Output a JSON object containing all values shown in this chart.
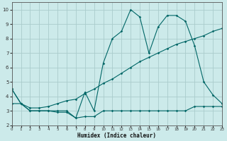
{
  "xlabel": "Humidex (Indice chaleur)",
  "bg_color": "#cceaea",
  "grid_color": "#aacccc",
  "line_color": "#006666",
  "xlim": [
    0,
    23
  ],
  "ylim": [
    2,
    10.5
  ],
  "yticks": [
    2,
    3,
    4,
    5,
    6,
    7,
    8,
    9,
    10
  ],
  "xticks": [
    0,
    1,
    2,
    3,
    4,
    5,
    6,
    7,
    8,
    9,
    10,
    11,
    12,
    13,
    14,
    15,
    16,
    17,
    18,
    19,
    20,
    21,
    22,
    23
  ],
  "line1_x": [
    0,
    1,
    2,
    3,
    4,
    5,
    6,
    7,
    8,
    9,
    10,
    11,
    12,
    13,
    14,
    15,
    16,
    17,
    18,
    19,
    20,
    21,
    22,
    23
  ],
  "line1_y": [
    4.5,
    3.5,
    3.0,
    3.0,
    3.0,
    3.0,
    3.0,
    2.5,
    2.6,
    2.6,
    3.0,
    3.0,
    3.0,
    3.0,
    3.0,
    3.0,
    3.0,
    3.0,
    3.0,
    3.0,
    3.3,
    3.3,
    3.3,
    3.3
  ],
  "line2_x": [
    0,
    1,
    2,
    3,
    4,
    5,
    6,
    7,
    8,
    9,
    10,
    11,
    12,
    13,
    14,
    15,
    16,
    17,
    18,
    19,
    20,
    21,
    22,
    23
  ],
  "line2_y": [
    3.5,
    3.5,
    3.2,
    3.2,
    3.3,
    3.5,
    3.7,
    3.8,
    4.2,
    4.5,
    4.9,
    5.2,
    5.6,
    6.0,
    6.4,
    6.7,
    7.0,
    7.3,
    7.6,
    7.8,
    8.0,
    8.2,
    8.5,
    8.7
  ],
  "line3_x": [
    0,
    1,
    2,
    3,
    4,
    5,
    6,
    7,
    8,
    9,
    10,
    11,
    12,
    13,
    14,
    15,
    16,
    17,
    18,
    19,
    20,
    21,
    22,
    23
  ],
  "line3_y": [
    4.5,
    3.5,
    3.0,
    3.0,
    3.0,
    2.9,
    2.9,
    2.5,
    4.3,
    3.0,
    6.3,
    8.0,
    8.5,
    10.0,
    9.5,
    7.0,
    8.8,
    9.6,
    9.6,
    9.2,
    7.5,
    5.0,
    4.1,
    3.5
  ]
}
